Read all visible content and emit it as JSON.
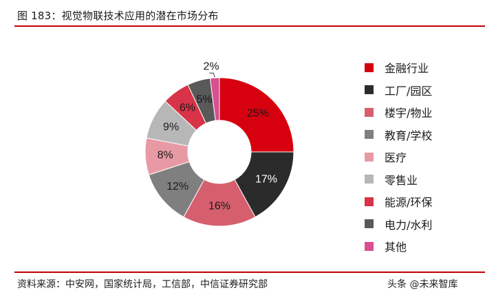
{
  "header": {
    "title": "图 183：视觉物联技术应用的潜在市场分布"
  },
  "footer": {
    "source": "资料来源：中安网，国家统计局，工信部，中信证券研究部",
    "watermark": "头条 @未来智库"
  },
  "chart_data": {
    "type": "pie",
    "subtype": "donut",
    "title": "视觉物联技术应用的潜在市场分布",
    "categories": [
      "金融行业",
      "工厂/园区",
      "楼宇/物业",
      "教育/学校",
      "医疗",
      "零售业",
      "能源/环保",
      "电力/水利",
      "其他"
    ],
    "values": [
      25,
      17,
      16,
      12,
      8,
      9,
      6,
      5,
      2
    ],
    "labels": [
      "25%",
      "17%",
      "16%",
      "12%",
      "8%",
      "9%",
      "6%",
      "5%",
      "2%"
    ],
    "colors": [
      "#d7000f",
      "#2b2b2b",
      "#d55f6d",
      "#7f7f7f",
      "#e89aa4",
      "#b7b7b7",
      "#d83348",
      "#595959",
      "#d94f8f"
    ],
    "label_colors": [
      "#1a1a1a",
      "#ffffff",
      "#1a1a1a",
      "#1a1a1a",
      "#1a1a1a",
      "#1a1a1a",
      "#1a1a1a",
      "#1a1a1a",
      "#1a1a1a"
    ],
    "legend_position": "right",
    "start_angle": "12 o'clock, clockwise"
  }
}
